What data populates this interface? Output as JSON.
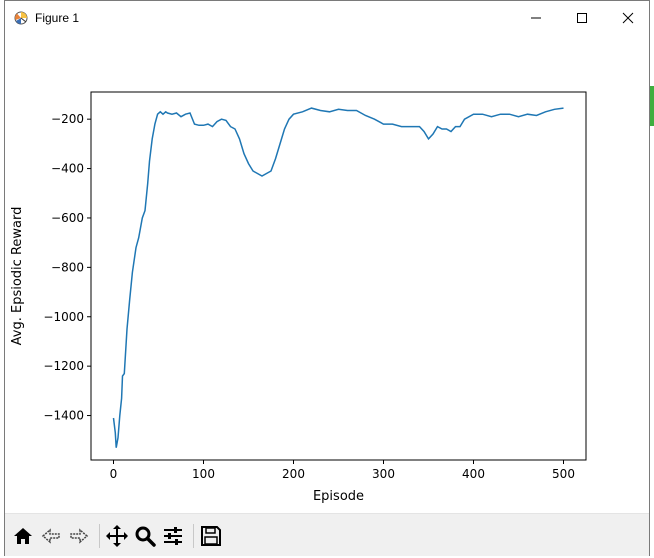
{
  "window": {
    "title": "Figure 1",
    "icons": {
      "app": "matplotlib-figure-icon",
      "minimize": "minimize-icon",
      "maximize": "maximize-icon",
      "close": "close-icon"
    }
  },
  "toolbar": {
    "buttons": [
      {
        "name": "home",
        "icon": "home-icon"
      },
      {
        "name": "back",
        "icon": "back-arrow-icon"
      },
      {
        "name": "forward",
        "icon": "forward-arrow-icon"
      },
      {
        "name": "pan",
        "icon": "pan-move-icon"
      },
      {
        "name": "zoom",
        "icon": "zoom-magnifier-icon"
      },
      {
        "name": "configure-subplots",
        "icon": "sliders-icon"
      },
      {
        "name": "save",
        "icon": "save-floppy-icon"
      }
    ]
  },
  "chart_data": {
    "type": "line",
    "title": "",
    "xlabel": "Episode",
    "ylabel": "Avg. Epsiodic Reward",
    "xlim": [
      -25,
      525
    ],
    "ylim": [
      -1580,
      -90
    ],
    "xticks": [
      0,
      100,
      200,
      300,
      400,
      500
    ],
    "yticks": [
      -200,
      -400,
      -600,
      -800,
      -1000,
      -1200,
      -1400
    ],
    "grid": false,
    "legend": "none",
    "line_color": "#1f77b4",
    "series": [
      {
        "x": [
          0,
          2,
          3,
          5,
          7,
          9,
          10,
          12,
          15,
          18,
          21,
          25,
          28,
          32,
          35,
          38,
          40,
          43,
          46,
          49,
          52,
          55,
          58,
          60,
          65,
          70,
          75,
          80,
          85,
          90,
          95,
          100,
          105,
          110,
          115,
          120,
          125,
          130,
          135,
          140,
          145,
          150,
          155,
          160,
          165,
          170,
          175,
          180,
          185,
          190,
          195,
          200,
          210,
          220,
          230,
          240,
          250,
          260,
          270,
          280,
          290,
          300,
          310,
          320,
          330,
          340,
          345,
          350,
          355,
          360,
          365,
          370,
          375,
          380,
          385,
          390,
          400,
          410,
          420,
          430,
          440,
          450,
          460,
          470,
          480,
          490,
          500
        ],
        "y": [
          -1410,
          -1470,
          -1530,
          -1490,
          -1400,
          -1330,
          -1240,
          -1230,
          -1050,
          -930,
          -820,
          -720,
          -680,
          -600,
          -570,
          -460,
          -370,
          -280,
          -220,
          -180,
          -170,
          -180,
          -170,
          -175,
          -180,
          -175,
          -190,
          -180,
          -175,
          -220,
          -225,
          -225,
          -220,
          -230,
          -210,
          -200,
          -205,
          -230,
          -240,
          -280,
          -340,
          -380,
          -410,
          -420,
          -430,
          -420,
          -410,
          -360,
          -300,
          -240,
          -200,
          -180,
          -170,
          -155,
          -165,
          -170,
          -160,
          -165,
          -165,
          -185,
          -200,
          -220,
          -220,
          -230,
          -230,
          -230,
          -250,
          -280,
          -260,
          -230,
          -240,
          -240,
          -250,
          -230,
          -230,
          -200,
          -180,
          -180,
          -190,
          -180,
          -180,
          -190,
          -180,
          -185,
          -170,
          -160,
          -155
        ]
      }
    ]
  }
}
